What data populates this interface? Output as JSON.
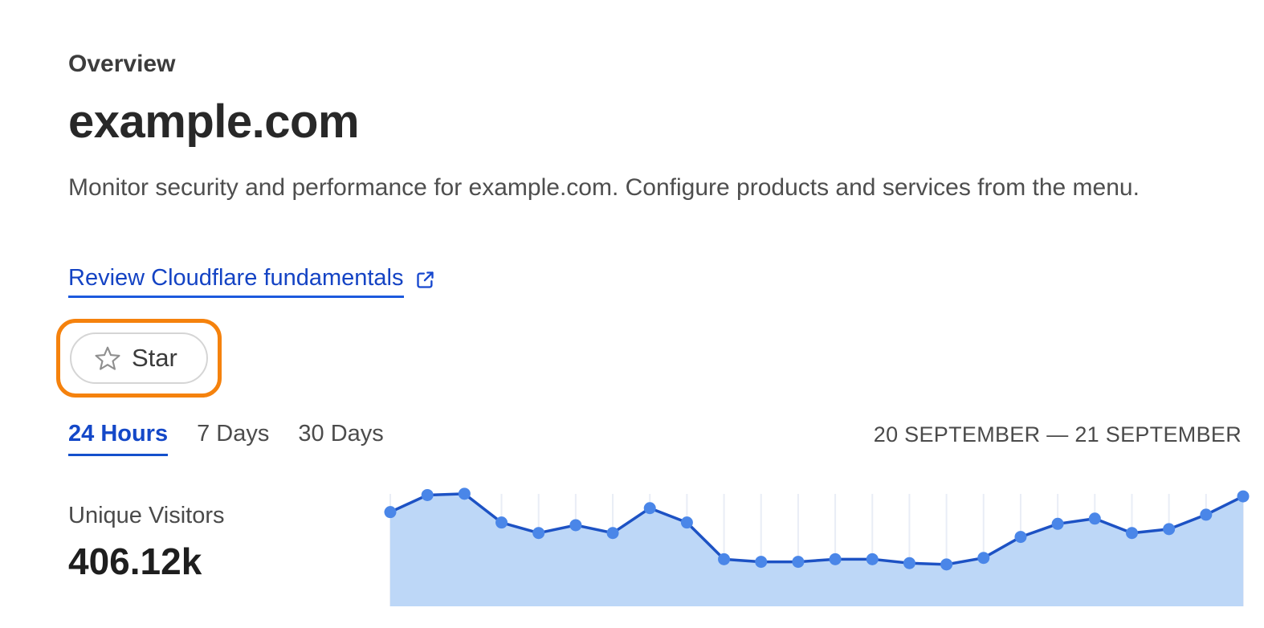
{
  "page": {
    "eyebrow": "Overview",
    "title": "example.com",
    "description": "Monitor security and performance for example.com. Configure products and services from the menu.",
    "link": {
      "label": "Review Cloudflare fundamentals",
      "icon": "external-link-icon"
    },
    "star_button": {
      "label": "Star",
      "icon": "star-icon"
    },
    "highlight_color": "#F5820D",
    "accent_blue": "#1448C8"
  },
  "time_range": {
    "tabs": [
      {
        "label": "24 Hours",
        "active": true
      },
      {
        "label": "7 Days",
        "active": false
      },
      {
        "label": "30 Days",
        "active": false
      }
    ],
    "date_range": "20 SEPTEMBER — 21 SEPTEMBER"
  },
  "stats": {
    "label": "Unique Visitors",
    "value": "406.12k"
  },
  "chart_data": {
    "type": "area",
    "title": "Unique Visitors over 24 Hours",
    "xlabel": "",
    "ylabel": "",
    "x_points": 24,
    "x_unit": "hour-index (0-23, unlabeled on screen)",
    "value_units": "relative height, percent of plot area (no y-axis shown)",
    "ylim": [
      0,
      100
    ],
    "grid": "vertical-only",
    "legend": "none",
    "series": [
      {
        "name": "Unique Visitors",
        "values": [
          72,
          85,
          86,
          64,
          56,
          62,
          56,
          75,
          64,
          36,
          34,
          34,
          36,
          36,
          33,
          32,
          37,
          53,
          63,
          67,
          56,
          59,
          70,
          84
        ]
      }
    ],
    "colors": {
      "line": "#1D52C4",
      "dot": "#4A86E8",
      "fill": "#BDD7F7",
      "gridline": "#E9EDF6"
    }
  }
}
